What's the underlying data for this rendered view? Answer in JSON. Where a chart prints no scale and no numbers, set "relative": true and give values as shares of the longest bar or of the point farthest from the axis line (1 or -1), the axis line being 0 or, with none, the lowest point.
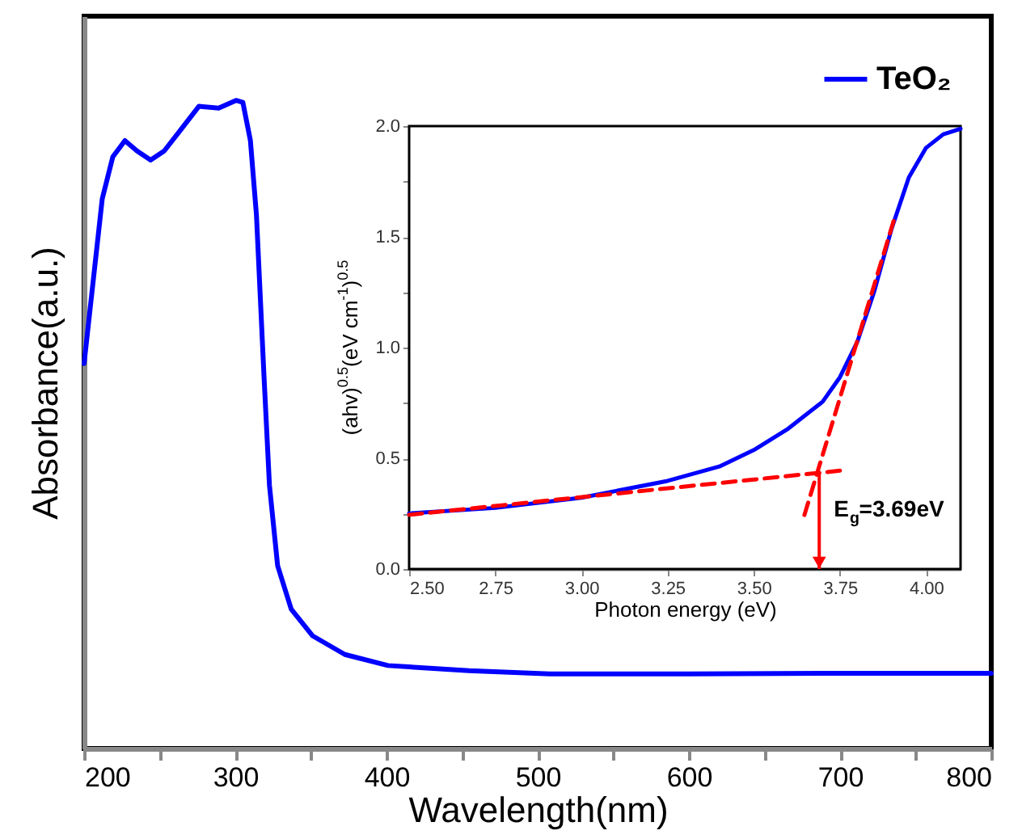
{
  "chart_data": [
    {
      "type": "line",
      "xlabel": "Wavelength(nm)",
      "ylabel": "Absorbance(a.u.)",
      "relative": true,
      "legend": "top right",
      "xlim": [
        200,
        800
      ],
      "xticks": [
        200,
        {
          "value": 250,
          "label": null
        },
        300,
        {
          "value": 350,
          "label": null
        },
        400,
        {
          "value": 450,
          "label": null
        },
        500,
        {
          "value": 550,
          "label": null
        },
        600,
        {
          "value": 650,
          "label": null
        },
        700,
        {
          "value": 750,
          "label": null
        },
        800
      ],
      "series": [
        {
          "name": "TeO₂",
          "color": "#0000ff",
          "line_style": "solid",
          "x": [
            200,
            212,
            219,
            227,
            235,
            244,
            253,
            264,
            276,
            289,
            300.5,
            305,
            310,
            314,
            319,
            322.6,
            328,
            337,
            351,
            372.5,
            401,
            454.5,
            508,
            600,
            700,
            800
          ],
          "values": [
            0.594,
            0.848,
            0.913,
            0.938,
            0.922,
            0.908,
            0.922,
            0.955,
            0.991,
            0.988,
            1,
            0.997,
            0.938,
            0.823,
            0.574,
            0.406,
            0.282,
            0.215,
            0.174,
            0.145,
            0.128,
            0.12,
            0.115,
            0.115,
            0.116,
            0.116
          ]
        }
      ]
    },
    {
      "type": "line",
      "xlabel": "Photon energy (eV)",
      "ylabel": "(ahv)$^{0.5}$(eV cm$^{-1}$)$^{0.5}$",
      "xlim": [
        2.5,
        4.1
      ],
      "xticks": [
        {
          "value": 2.5,
          "label": "2.50"
        },
        {
          "value": 2.75,
          "label": "2.75"
        },
        {
          "value": 3.0,
          "label": "3.00"
        },
        {
          "value": 3.25,
          "label": "3.25"
        },
        {
          "value": 3.5,
          "label": "3.50"
        },
        {
          "value": 3.75,
          "label": "3.75"
        },
        {
          "value": 4.0,
          "label": "4.00"
        }
      ],
      "ylim": [
        0,
        2.0
      ],
      "yticks": [
        {
          "value": 0,
          "label": "0.0"
        },
        {
          "value": 0.25,
          "label": null
        },
        {
          "value": 0.5,
          "label": "0.5"
        },
        {
          "value": 0.75,
          "label": null
        },
        {
          "value": 1.0,
          "label": "1.0"
        },
        {
          "value": 1.25,
          "label": null
        },
        {
          "value": 1.5,
          "label": "1.5"
        },
        {
          "value": 1.75,
          "label": null
        },
        {
          "value": 2.0,
          "label": "2.0"
        }
      ],
      "annotations": [
        {
          "text": "E$_{g}$=3.69eV",
          "x": 3.69,
          "y": 0.44
        }
      ],
      "series": [
        {
          "color": "#0000ff",
          "line_style": "solid",
          "x": [
            2.5,
            2.75,
            3.0,
            3.25,
            3.4,
            3.5,
            3.6,
            3.7,
            3.75,
            3.8,
            3.85,
            3.9,
            3.95,
            4.0,
            4.05,
            4.1
          ],
          "values": [
            0.251,
            0.276,
            0.322,
            0.398,
            0.463,
            0.537,
            0.634,
            0.756,
            0.866,
            1.024,
            1.256,
            1.537,
            1.768,
            1.902,
            1.963,
            1.988
          ]
        },
        {
          "color": "#ff0000",
          "line_style": "dashed",
          "x": [
            2.5,
            3.75
          ],
          "values": [
            0.245,
            0.444
          ]
        },
        {
          "color": "#ff0000",
          "line_style": "dashed",
          "x": [
            3.647,
            3.911
          ],
          "values": [
            0.244,
            1.598
          ]
        }
      ]
    }
  ]
}
